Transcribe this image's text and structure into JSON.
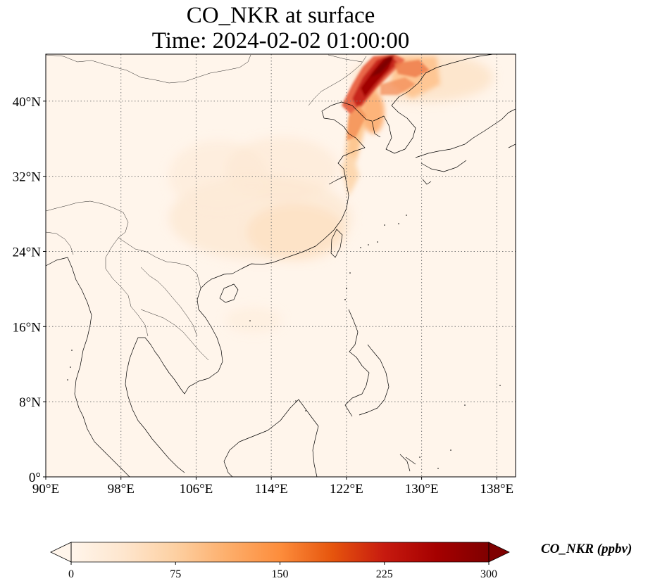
{
  "map": {
    "title_line1": "CO_NKR at surface",
    "title_line2": "Time: 2024-02-02 01:00:00",
    "lon_range": [
      90,
      140
    ],
    "lat_range": [
      0,
      45
    ],
    "lon_ticks": [
      {
        "value": 90,
        "label": "90°E"
      },
      {
        "value": 98,
        "label": "98°E"
      },
      {
        "value": 106,
        "label": "106°E"
      },
      {
        "value": 114,
        "label": "114°E"
      },
      {
        "value": 122,
        "label": "122°E"
      },
      {
        "value": 130,
        "label": "130°E"
      },
      {
        "value": 138,
        "label": "138°E"
      }
    ],
    "lat_ticks": [
      {
        "value": 0,
        "label": "0°"
      },
      {
        "value": 8,
        "label": "8°N"
      },
      {
        "value": 16,
        "label": "16°N"
      },
      {
        "value": 24,
        "label": "24°N"
      },
      {
        "value": 32,
        "label": "32°N"
      },
      {
        "value": 40,
        "label": "40°N"
      }
    ],
    "gridlines": true,
    "background_color": "#fff5eb",
    "coastline_color": "#000000"
  },
  "colorbar": {
    "label": "CO_NKR (ppbv)",
    "colormap": "OrRd-like",
    "colors": [
      "#fff5eb",
      "#fee6ce",
      "#fdd0a2",
      "#fdae6b",
      "#fd8d3c",
      "#e6550d",
      "#c71a0f",
      "#a50000",
      "#7f0000"
    ],
    "range": [
      0,
      300
    ],
    "extend": "both",
    "ticks": [
      {
        "value": 0,
        "label": "0"
      },
      {
        "value": 75,
        "label": "75"
      },
      {
        "value": 150,
        "label": "150"
      },
      {
        "value": 225,
        "label": "225"
      },
      {
        "value": 300,
        "label": "300"
      }
    ]
  }
}
